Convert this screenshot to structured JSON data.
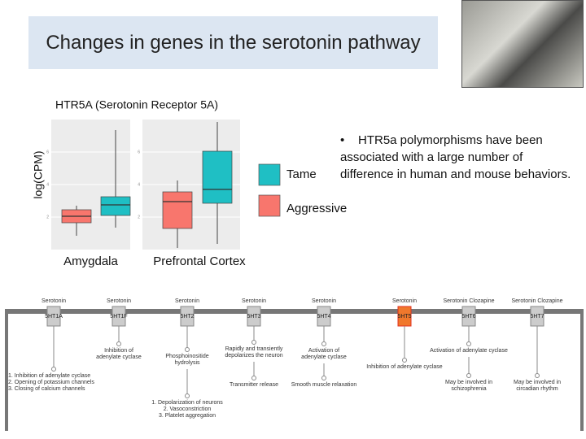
{
  "header": {
    "title": "Changes in genes in the serotonin pathway"
  },
  "chart_data": [
    {
      "type": "box",
      "title": "HTR5A (Serotonin Receptor 5A)",
      "ylabel": "log(CPM)",
      "categories": [
        "Amygdala"
      ],
      "ylim": [
        0,
        8
      ],
      "yticks": [
        2,
        4,
        6
      ],
      "grid": true,
      "series": [
        {
          "name": "Aggressive",
          "color": "#f8766d",
          "values": [
            {
              "min": 0.85,
              "q1": 1.65,
              "median": 2.05,
              "q3": 2.45,
              "max": 2.7
            }
          ]
        },
        {
          "name": "Tame",
          "color": "#1fbfc4",
          "values": [
            {
              "min": 1.35,
              "q1": 2.1,
              "median": 2.75,
              "q3": 3.25,
              "max": 7.35
            }
          ]
        }
      ]
    },
    {
      "type": "box",
      "categories": [
        "Prefrontal Cortex"
      ],
      "ylim": [
        0,
        8
      ],
      "yticks": [
        2,
        4,
        6
      ],
      "grid": true,
      "series": [
        {
          "name": "Aggressive",
          "color": "#f8766d",
          "values": [
            {
              "min": 0.1,
              "q1": 1.3,
              "median": 2.95,
              "q3": 3.55,
              "max": 4.25
            }
          ]
        },
        {
          "name": "Tame",
          "color": "#1fbfc4",
          "values": [
            {
              "min": 0.35,
              "q1": 2.85,
              "median": 3.7,
              "q3": 6.05,
              "max": 7.85
            }
          ]
        }
      ]
    }
  ],
  "notes": {
    "bullets": [
      "HTR5a polymorphisms have been associated with a large number of difference in human and mouse behaviors."
    ]
  },
  "pathway": {
    "highlight_color": "#f0782c",
    "receptors": [
      {
        "ligand": "Serotonin",
        "name": "5HT1A",
        "steps": [
          [
            "1. Inhibition of adenylate cyclase",
            "2. Opening of potassium channels",
            "3. Closing of calcium channels"
          ]
        ]
      },
      {
        "ligand": "Serotonin",
        "name": "5HT1F",
        "steps": [
          [
            "Inhibition of",
            "adenylate cyclase"
          ]
        ]
      },
      {
        "ligand": "Serotonin",
        "name": "5HT2",
        "steps": [
          [
            "Phosphoinositide",
            "hydrolysis"
          ],
          [
            "1. Depolarization of neurons",
            "2. Vasoconstriction",
            "3. Platelet aggregation"
          ]
        ]
      },
      {
        "ligand": "Serotonin",
        "name": "5HT3",
        "steps": [
          [
            "Rapidly and transiently",
            "depolarizes the neuron"
          ],
          [
            "Transmitter release"
          ]
        ]
      },
      {
        "ligand": "Serotonin",
        "name": "5HT4",
        "steps": [
          [
            "Activation of",
            "adenylate cyclase"
          ],
          [
            "Smooth muscle relaxation"
          ]
        ]
      },
      {
        "ligand": "Serotonin",
        "name": "5HT5",
        "highlighted": true,
        "steps": [
          [
            "Inhibition of adenylate cyclase"
          ]
        ]
      },
      {
        "ligand": "Serotonin Clozapine",
        "name": "5HT6",
        "steps": [
          [
            "Activation of adenylate cyclase"
          ],
          [
            "May be involved in",
            "schizophrenia"
          ]
        ]
      },
      {
        "ligand": "Serotonin Clozapine",
        "name": "5HT7",
        "steps": [
          [
            "May be involved in",
            "circadian rhythm"
          ]
        ]
      }
    ]
  }
}
